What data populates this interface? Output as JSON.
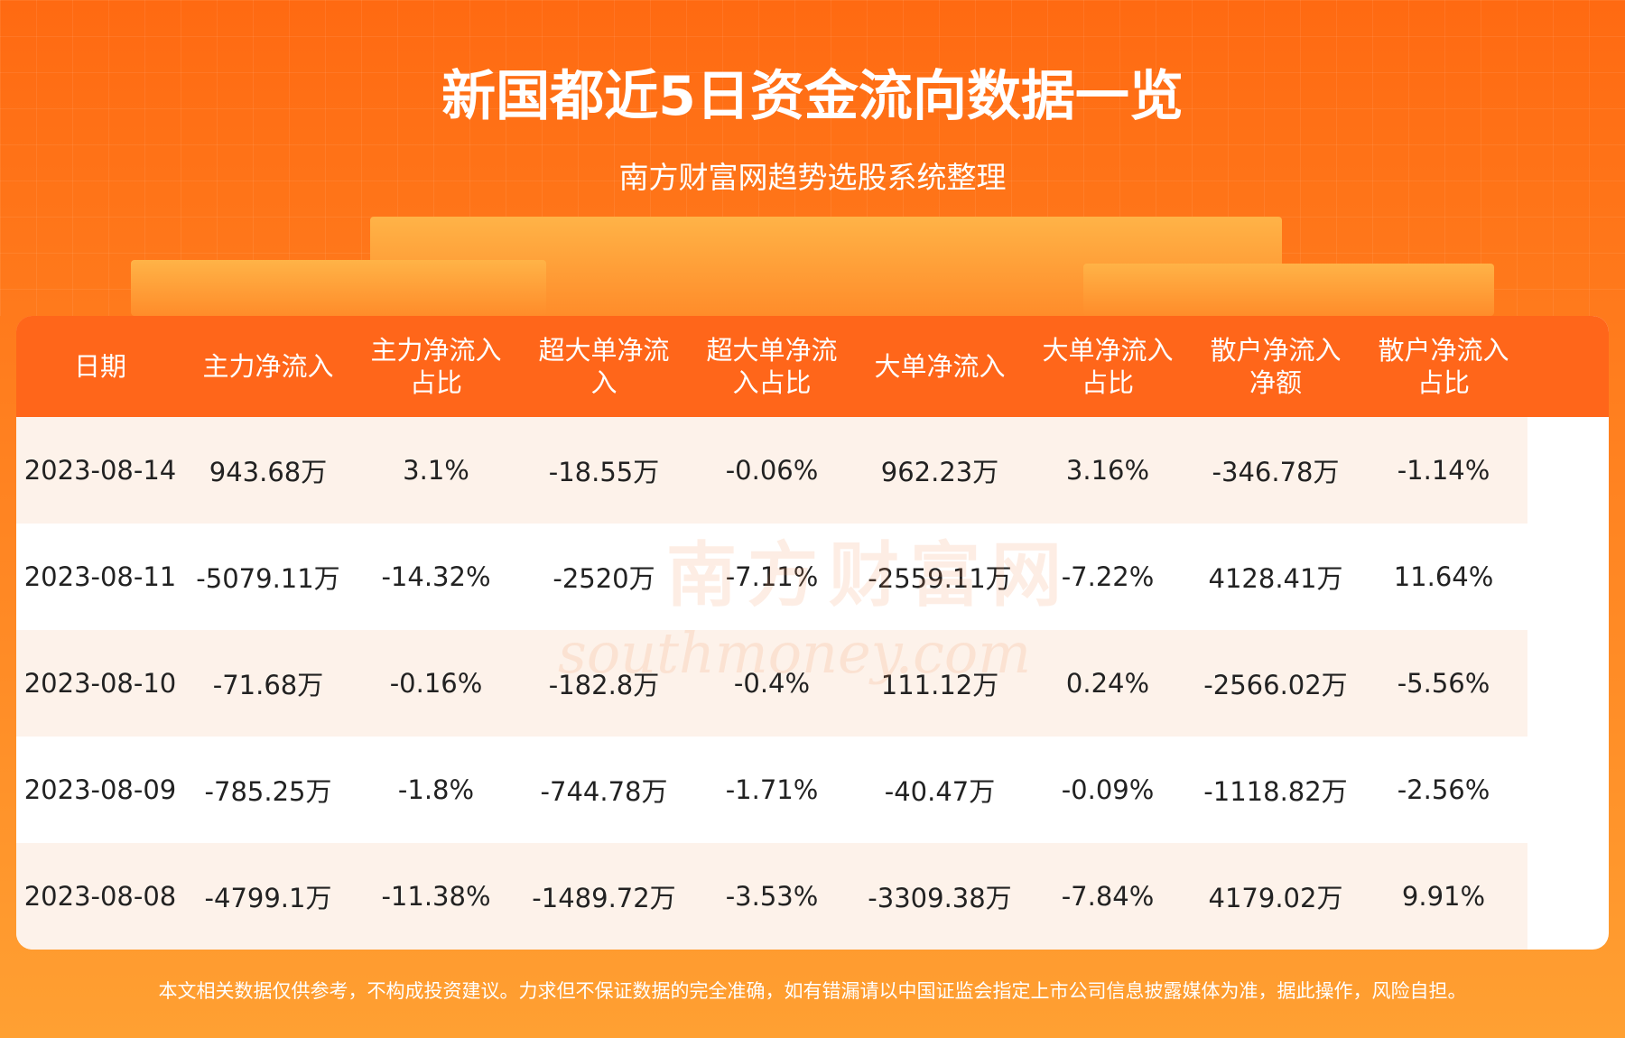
{
  "header": {
    "title": "新国都近5日资金流向数据一览",
    "subtitle": "南方财富网趋势选股系统整理"
  },
  "watermark": {
    "name": "南方财富网",
    "site": "southmoney.com"
  },
  "table": {
    "columns": [
      "日期",
      "主力净流入",
      "主力净流入占比",
      "超大单净流入",
      "超大单净流入占比",
      "大单净流入",
      "大单净流入占比",
      "散户净流入净额",
      "散户净流入占比"
    ],
    "rows": [
      [
        "2023-08-14",
        "943.68万",
        "3.1%",
        "-18.55万",
        "-0.06%",
        "962.23万",
        "3.16%",
        "-346.78万",
        "-1.14%"
      ],
      [
        "2023-08-11",
        "-5079.11万",
        "-14.32%",
        "-2520万",
        "-7.11%",
        "-2559.11万",
        "-7.22%",
        "4128.41万",
        "11.64%"
      ],
      [
        "2023-08-10",
        "-71.68万",
        "-0.16%",
        "-182.8万",
        "-0.4%",
        "111.12万",
        "0.24%",
        "-2566.02万",
        "-5.56%"
      ],
      [
        "2023-08-09",
        "-785.25万",
        "-1.8%",
        "-744.78万",
        "-1.71%",
        "-40.47万",
        "-0.09%",
        "-1118.82万",
        "-2.56%"
      ],
      [
        "2023-08-08",
        "-4799.1万",
        "-11.38%",
        "-1489.72万",
        "-3.53%",
        "-3309.38万",
        "-7.84%",
        "4179.02万",
        "9.91%"
      ]
    ]
  },
  "footer": {
    "disclaimer": "本文相关数据仅供参考，不构成投资建议。力求但不保证数据的完全准确，如有错漏请以中国证监会指定上市公司信息披露媒体为准，据此操作，风险自担。"
  }
}
